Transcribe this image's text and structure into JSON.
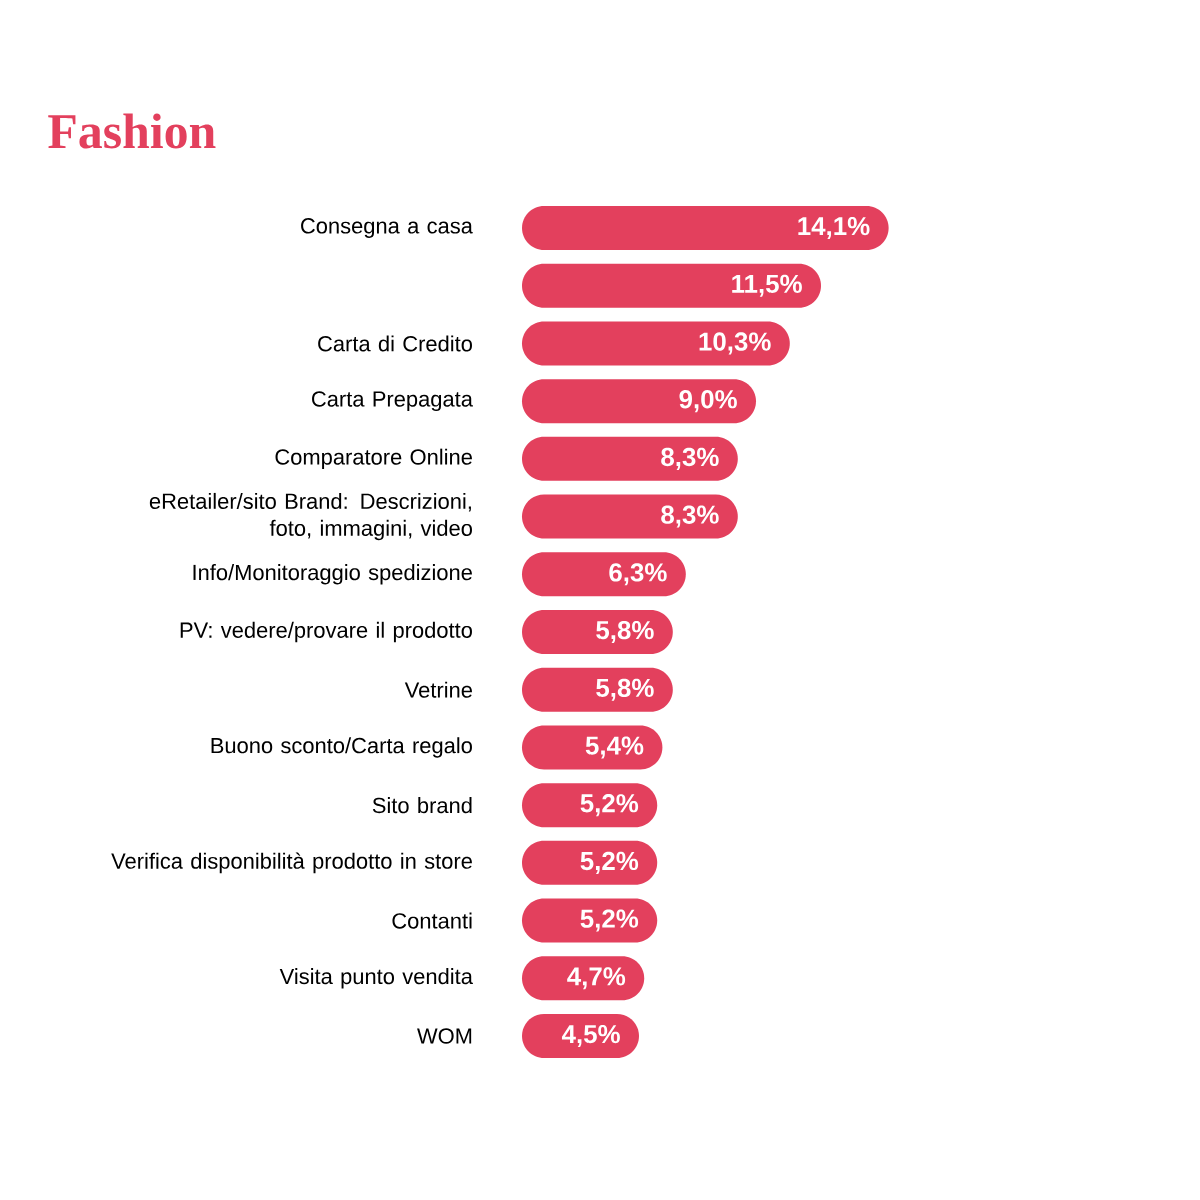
{
  "chart_data": {
    "type": "bar",
    "orientation": "horizontal",
    "title": "Fashion",
    "categories": [
      "Consegna a casa",
      null,
      "Carta di Credito",
      "Carta Prepagata",
      "Comparatore Online",
      "eRetailer/sito Brand: Descrizioni, foto, immagini, video",
      "Info/Monitoraggio spedizione",
      "PV: vedere/provare il prodotto",
      "Vetrine",
      "Buono sconto/Carta regalo",
      "Sito brand",
      "Verifica disponibilità prodotto in store",
      "Contanti",
      "Visita punto vendita",
      "WOM"
    ],
    "values": [
      14.1,
      11.5,
      10.3,
      9.0,
      8.3,
      8.3,
      6.3,
      5.8,
      5.8,
      5.4,
      5.2,
      5.2,
      5.2,
      4.7,
      4.5
    ],
    "color": "#e3405d",
    "value_labels": [
      "14,1%",
      "11,5%",
      "10,3%",
      "9,0%",
      "8,3%",
      "8,3%",
      "6,3%",
      "5,8%",
      "5,8%",
      "5,4%",
      "5,2%",
      "5,2%",
      "5,2%",
      "4,7%",
      "4,5%"
    ]
  }
}
